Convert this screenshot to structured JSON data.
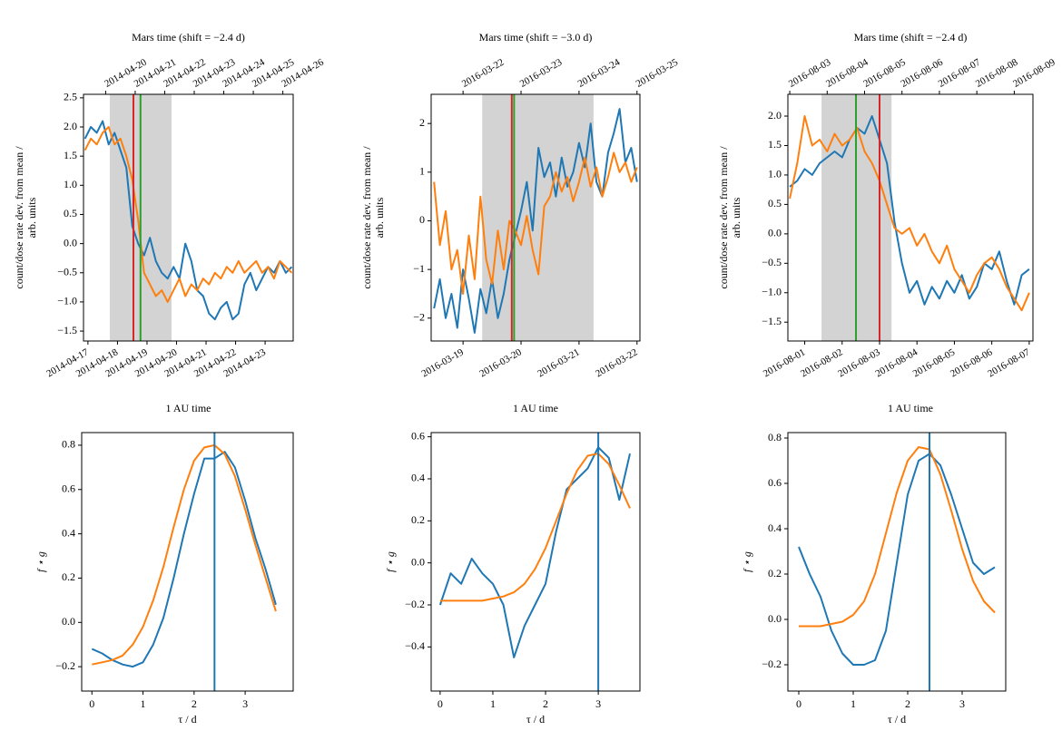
{
  "chart_data": [
    {
      "type": "line",
      "x2label": "Mars time (shift = −2.4 d)",
      "xlabel": "1 AU time",
      "ylabel": [
        "count/dose rate dev. from mean /",
        "arb. units"
      ],
      "xlim": [
        106.85,
        113.95
      ],
      "ylim": [
        -1.67,
        2.56
      ],
      "xticks": [
        {
          "value": 107,
          "label": "2014-04-17"
        },
        {
          "value": 108,
          "label": "2014-04-18"
        },
        {
          "value": 109,
          "label": "2014-04-19"
        },
        {
          "value": 110,
          "label": "2014-04-20"
        },
        {
          "value": 111,
          "label": "2014-04-21"
        },
        {
          "value": 112,
          "label": "2014-04-22"
        },
        {
          "value": 113,
          "label": "2014-04-23"
        }
      ],
      "x2ticks": [
        {
          "value": 107.6,
          "label": "2014-04-20"
        },
        {
          "value": 108.6,
          "label": "2014-04-21"
        },
        {
          "value": 109.6,
          "label": "2014-04-22"
        },
        {
          "value": 110.6,
          "label": "2014-04-23"
        },
        {
          "value": 111.6,
          "label": "2014-04-24"
        },
        {
          "value": 112.6,
          "label": "2014-04-25"
        },
        {
          "value": 113.6,
          "label": "2014-04-26"
        }
      ],
      "yticks": [
        {
          "value": -1.5,
          "label": "−1.5"
        },
        {
          "value": -1,
          "label": "−1.0"
        },
        {
          "value": -0.5,
          "label": "−0.5"
        },
        {
          "value": 0,
          "label": "0.0"
        },
        0.5,
        {
          "value": 1,
          "label": "1.0"
        },
        1.5,
        {
          "value": 2,
          "label": "2.0"
        },
        2.5
      ],
      "span": [
        107.74,
        109.83
      ],
      "vlines": [
        {
          "x": 108.54,
          "color": "#d62728"
        },
        {
          "x": 108.78,
          "color": "#2ca02c"
        }
      ],
      "x": [
        106.9,
        107.1,
        107.3,
        107.5,
        107.7,
        107.9,
        108.1,
        108.3,
        108.5,
        108.7,
        108.9,
        109.1,
        109.3,
        109.5,
        109.7,
        109.9,
        110.1,
        110.3,
        110.5,
        110.7,
        110.9,
        111.1,
        111.3,
        111.5,
        111.7,
        111.9,
        112.1,
        112.3,
        112.5,
        112.7,
        112.9,
        113.1,
        113.3,
        113.5,
        113.7,
        113.9
      ],
      "series": [
        {
          "color": "#1f77b4",
          "values": [
            1.8,
            2.0,
            1.9,
            2.1,
            1.7,
            1.9,
            1.6,
            1.3,
            0.3,
            0.0,
            -0.2,
            0.1,
            -0.3,
            -0.5,
            -0.6,
            -0.4,
            -0.6,
            0.0,
            -0.3,
            -0.8,
            -0.9,
            -1.2,
            -1.3,
            -1.1,
            -1.0,
            -1.3,
            -1.2,
            -0.7,
            -0.5,
            -0.8,
            -0.6,
            -0.4,
            -0.5,
            -0.3,
            -0.5,
            -0.4
          ]
        },
        {
          "color": "#ff7f0e",
          "values": [
            1.6,
            1.8,
            1.7,
            1.9,
            2.0,
            1.7,
            1.8,
            1.5,
            1.1,
            0.4,
            -0.5,
            -0.7,
            -0.9,
            -0.8,
            -1.0,
            -0.8,
            -0.6,
            -0.9,
            -0.7,
            -0.8,
            -0.6,
            -0.7,
            -0.5,
            -0.6,
            -0.4,
            -0.5,
            -0.3,
            -0.5,
            -0.4,
            -0.3,
            -0.5,
            -0.4,
            -0.6,
            -0.3,
            -0.4,
            -0.5
          ]
        }
      ]
    },
    {
      "type": "line",
      "x2label": "Mars time (shift = −3.0 d)",
      "xlabel": "1 AU time",
      "ylabel": [
        "count/dose rate dev. from mean /",
        "arb. units"
      ],
      "xlim": [
        78.45,
        82.05
      ],
      "ylim": [
        -2.47,
        2.6
      ],
      "xticks": [
        {
          "value": 79,
          "label": "2016-03-19"
        },
        {
          "value": 80,
          "label": "2016-03-20"
        },
        {
          "value": 81,
          "label": "2016-03-21"
        },
        {
          "value": 82,
          "label": "2016-03-22"
        }
      ],
      "x2ticks": [
        {
          "value": 79,
          "label": "2016-03-22"
        },
        {
          "value": 80,
          "label": "2016-03-23"
        },
        {
          "value": 81,
          "label": "2016-03-24"
        },
        {
          "value": 82,
          "label": "2016-03-25"
        }
      ],
      "yticks": [
        {
          "value": -2,
          "label": "−2"
        },
        {
          "value": -1,
          "label": "−1"
        },
        0,
        1,
        2
      ],
      "span": [
        79.33,
        81.25
      ],
      "vlines": [
        {
          "x": 79.84,
          "color": "#d62728"
        },
        {
          "x": 79.88,
          "color": "#2ca02c"
        }
      ],
      "x": [
        78.5,
        78.6,
        78.7,
        78.8,
        78.9,
        79.0,
        79.1,
        79.2,
        79.3,
        79.4,
        79.5,
        79.6,
        79.7,
        79.8,
        79.9,
        80.0,
        80.1,
        80.2,
        80.3,
        80.4,
        80.5,
        80.6,
        80.7,
        80.8,
        80.9,
        81.0,
        81.1,
        81.2,
        81.3,
        81.4,
        81.5,
        81.6,
        81.7,
        81.8,
        81.9,
        82.0
      ],
      "series": [
        {
          "color": "#1f77b4",
          "values": [
            -1.8,
            -1.2,
            -2.0,
            -1.5,
            -2.2,
            -1.0,
            -1.6,
            -2.3,
            -1.4,
            -1.9,
            -1.2,
            -2.0,
            -1.5,
            -0.8,
            -0.3,
            0.2,
            0.8,
            -0.2,
            1.5,
            0.9,
            1.2,
            0.5,
            1.3,
            0.7,
            1.0,
            1.6,
            1.1,
            2.0,
            0.8,
            0.5,
            1.4,
            1.8,
            2.3,
            1.2,
            1.5,
            0.8
          ]
        },
        {
          "color": "#ff7f0e",
          "values": [
            0.8,
            -0.5,
            0.2,
            -1.0,
            -0.6,
            -1.5,
            -0.3,
            -1.2,
            0.5,
            -0.8,
            -1.3,
            -0.2,
            -1.0,
            0.0,
            -0.2,
            -0.5,
            0.1,
            -0.6,
            -1.1,
            0.3,
            0.5,
            1.0,
            0.6,
            0.9,
            0.4,
            0.8,
            1.3,
            0.7,
            1.1,
            0.5,
            0.9,
            1.4,
            1.0,
            1.2,
            0.8,
            1.1
          ]
        }
      ]
    },
    {
      "type": "line",
      "x2label": "Mars time (shift = −2.4 d)",
      "xlabel": "1 AU time",
      "ylabel": [
        "count/dose rate dev. from mean /",
        "arb. units"
      ],
      "xlim": [
        213.55,
        220.1
      ],
      "ylim": [
        -1.82,
        2.37
      ],
      "xticks": [
        {
          "value": 214,
          "label": "2016-08-01"
        },
        {
          "value": 215,
          "label": "2016-08-02"
        },
        {
          "value": 216,
          "label": "2016-08-03"
        },
        {
          "value": 217,
          "label": "2016-08-04"
        },
        {
          "value": 218,
          "label": "2016-08-05"
        },
        {
          "value": 219,
          "label": "2016-08-06"
        },
        {
          "value": 220,
          "label": "2016-08-07"
        }
      ],
      "x2ticks": [
        {
          "value": 213.6,
          "label": "2016-08-03"
        },
        {
          "value": 214.6,
          "label": "2016-08-04"
        },
        {
          "value": 215.6,
          "label": "2016-08-05"
        },
        {
          "value": 216.6,
          "label": "2016-08-06"
        },
        {
          "value": 217.6,
          "label": "2016-08-07"
        },
        {
          "value": 218.6,
          "label": "2016-08-08"
        },
        {
          "value": 219.6,
          "label": "2016-08-09"
        }
      ],
      "yticks": [
        {
          "value": -1.5,
          "label": "−1.5"
        },
        {
          "value": -1,
          "label": "−1.0"
        },
        {
          "value": -0.5,
          "label": "−0.5"
        },
        {
          "value": 0,
          "label": "0.0"
        },
        0.5,
        {
          "value": 1,
          "label": "1.0"
        },
        1.5,
        {
          "value": 2,
          "label": "2.0"
        }
      ],
      "span": [
        214.45,
        216.32
      ],
      "vlines": [
        {
          "x": 215.37,
          "color": "#2ca02c"
        },
        {
          "x": 216.0,
          "color": "#d62728"
        }
      ],
      "x": [
        213.6,
        213.8,
        214.0,
        214.2,
        214.4,
        214.6,
        214.8,
        215.0,
        215.2,
        215.4,
        215.6,
        215.8,
        216.0,
        216.2,
        216.4,
        216.6,
        216.8,
        217.0,
        217.2,
        217.4,
        217.6,
        217.8,
        218.0,
        218.2,
        218.4,
        218.6,
        218.8,
        219.0,
        219.2,
        219.4,
        219.6,
        219.8,
        220.0
      ],
      "series": [
        {
          "color": "#1f77b4",
          "values": [
            0.8,
            0.9,
            1.1,
            1.0,
            1.2,
            1.3,
            1.4,
            1.3,
            1.6,
            1.8,
            1.7,
            2.0,
            1.6,
            1.2,
            0.2,
            -0.5,
            -1.0,
            -0.8,
            -1.2,
            -0.9,
            -1.1,
            -0.8,
            -1.0,
            -0.7,
            -1.1,
            -0.9,
            -0.5,
            -0.6,
            -0.3,
            -0.8,
            -1.2,
            -0.7,
            -0.6
          ]
        },
        {
          "color": "#ff7f0e",
          "values": [
            0.6,
            1.2,
            2.0,
            1.5,
            1.6,
            1.4,
            1.7,
            1.5,
            1.6,
            1.8,
            1.4,
            1.2,
            0.9,
            0.5,
            0.1,
            0.0,
            0.1,
            -0.2,
            0.0,
            -0.3,
            -0.5,
            -0.2,
            -0.6,
            -0.8,
            -1.0,
            -0.7,
            -0.5,
            -0.4,
            -0.6,
            -0.9,
            -1.1,
            -1.3,
            -1.0
          ]
        }
      ]
    },
    {
      "type": "line",
      "xlabel": "τ / d",
      "ylabel": [
        "f ⋆ g"
      ],
      "xlim": [
        -0.2,
        3.94
      ],
      "ylim": [
        -0.31,
        0.857
      ],
      "xticks": [
        0,
        1,
        2,
        3
      ],
      "yticks": [
        {
          "value": -0.2,
          "label": "−0.2"
        },
        {
          "value": 0,
          "label": "0.0"
        },
        0.2,
        0.4,
        0.6,
        0.8
      ],
      "vlines": [
        {
          "x": 2.4,
          "color": "#1f77b4"
        }
      ],
      "x": [
        0,
        0.2,
        0.4,
        0.6,
        0.8,
        1.0,
        1.2,
        1.4,
        1.6,
        1.8,
        2.0,
        2.2,
        2.4,
        2.6,
        2.8,
        3.0,
        3.2,
        3.4,
        3.6
      ],
      "series": [
        {
          "color": "#1f77b4",
          "values": [
            -0.12,
            -0.14,
            -0.17,
            -0.19,
            -0.2,
            -0.18,
            -0.1,
            0.02,
            0.2,
            0.4,
            0.58,
            0.74,
            0.74,
            0.77,
            0.7,
            0.55,
            0.38,
            0.24,
            0.08
          ]
        },
        {
          "color": "#ff7f0e",
          "values": [
            -0.19,
            -0.18,
            -0.17,
            -0.15,
            -0.1,
            -0.02,
            0.1,
            0.25,
            0.43,
            0.6,
            0.73,
            0.79,
            0.8,
            0.76,
            0.66,
            0.51,
            0.35,
            0.2,
            0.05
          ]
        }
      ]
    },
    {
      "type": "line",
      "xlabel": "τ / d",
      "ylabel": [
        "f ⋆ g"
      ],
      "xlim": [
        -0.17,
        3.79
      ],
      "ylim": [
        -0.61,
        0.62
      ],
      "xticks": [
        0,
        1,
        2,
        3
      ],
      "yticks": [
        {
          "value": -0.4,
          "label": "−0.4"
        },
        {
          "value": -0.2,
          "label": "−0.2"
        },
        {
          "value": 0,
          "label": "0.0"
        },
        0.2,
        0.4,
        0.6
      ],
      "vlines": [
        {
          "x": 3.0,
          "color": "#1f77b4"
        }
      ],
      "x": [
        0,
        0.2,
        0.4,
        0.6,
        0.8,
        1.0,
        1.2,
        1.4,
        1.6,
        1.8,
        2.0,
        2.2,
        2.4,
        2.6,
        2.8,
        3.0,
        3.2,
        3.4,
        3.6
      ],
      "series": [
        {
          "color": "#1f77b4",
          "values": [
            -0.2,
            -0.05,
            -0.1,
            0.02,
            -0.05,
            -0.1,
            -0.2,
            -0.45,
            -0.3,
            -0.2,
            -0.1,
            0.15,
            0.35,
            0.4,
            0.45,
            0.55,
            0.5,
            0.3,
            0.52
          ]
        },
        {
          "color": "#ff7f0e",
          "values": [
            -0.18,
            -0.18,
            -0.18,
            -0.18,
            -0.18,
            -0.17,
            -0.16,
            -0.14,
            -0.1,
            -0.03,
            0.07,
            0.2,
            0.33,
            0.44,
            0.51,
            0.52,
            0.47,
            0.37,
            0.26
          ]
        }
      ]
    },
    {
      "type": "line",
      "xlabel": "τ / d",
      "ylabel": [
        "f ⋆ g"
      ],
      "xlim": [
        -0.2,
        3.8
      ],
      "ylim": [
        -0.316,
        0.824
      ],
      "xticks": [
        0,
        1,
        2,
        3
      ],
      "yticks": [
        {
          "value": -0.2,
          "label": "−0.2"
        },
        {
          "value": 0,
          "label": "0.0"
        },
        0.2,
        0.4,
        0.6,
        0.8
      ],
      "vlines": [
        {
          "x": 2.4,
          "color": "#1f77b4"
        }
      ],
      "x": [
        0,
        0.2,
        0.4,
        0.6,
        0.8,
        1.0,
        1.2,
        1.4,
        1.6,
        1.8,
        2.0,
        2.2,
        2.4,
        2.6,
        2.8,
        3.0,
        3.2,
        3.4,
        3.6
      ],
      "series": [
        {
          "color": "#1f77b4",
          "values": [
            0.32,
            0.2,
            0.1,
            -0.05,
            -0.15,
            -0.2,
            -0.2,
            -0.18,
            -0.05,
            0.25,
            0.55,
            0.7,
            0.73,
            0.68,
            0.55,
            0.4,
            0.25,
            0.2,
            0.23
          ]
        },
        {
          "color": "#ff7f0e",
          "values": [
            -0.03,
            -0.03,
            -0.03,
            -0.02,
            -0.01,
            0.02,
            0.08,
            0.2,
            0.38,
            0.56,
            0.7,
            0.76,
            0.75,
            0.64,
            0.48,
            0.31,
            0.17,
            0.08,
            0.03
          ]
        }
      ]
    }
  ]
}
